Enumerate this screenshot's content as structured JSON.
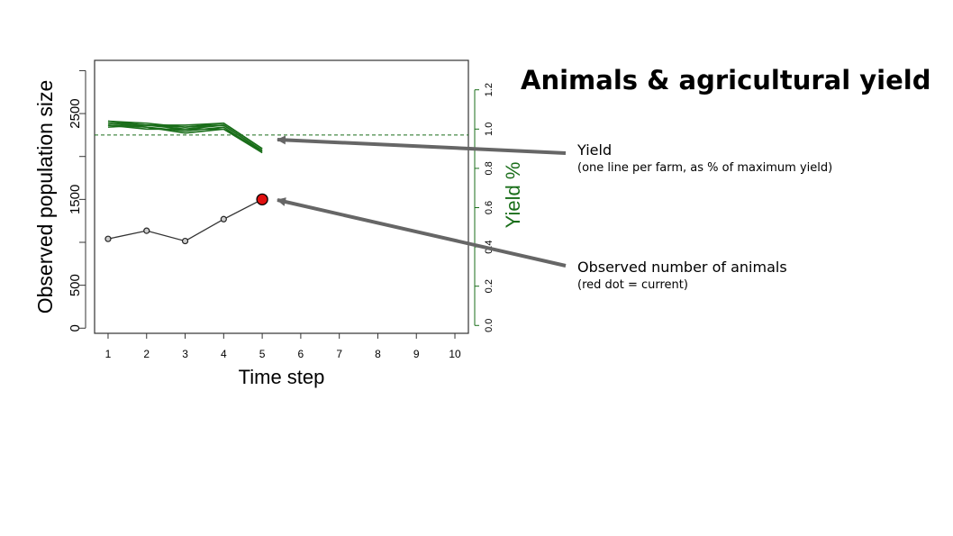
{
  "title": "Animals & agricultural yield",
  "annotations": {
    "yield_label": "Yield",
    "yield_note": "(one line per farm, as % of maximum yield)",
    "animals_label": "Observed number of animals",
    "animals_note": "(red dot = current)"
  },
  "colors": {
    "yield": "#1a6e1a",
    "population_line": "#333333",
    "current_point": "#e01010",
    "arrow": "#666666",
    "axis": "#333333"
  },
  "chart_data": {
    "type": "line",
    "title": "Animals & agricultural yield",
    "xlabel": "Time step",
    "ylabel": "Observed population size",
    "y2label": "Yield %",
    "x_ticks": [
      1,
      2,
      3,
      4,
      5,
      6,
      7,
      8,
      9,
      10
    ],
    "y_ticks": [
      0,
      500,
      1000,
      1500,
      2000,
      2500,
      3000
    ],
    "y_tick_labels": [
      "0",
      "500",
      "",
      "1500",
      "",
      "2500",
      ""
    ],
    "y2_ticks": [
      0.0,
      0.2,
      0.4,
      0.6,
      0.8,
      1.0,
      1.2
    ],
    "y2_tick_labels": [
      "0.0",
      "0.2",
      "0.4",
      "0.6",
      "0.8",
      "1.0",
      "1.2"
    ],
    "xlim": [
      0.65,
      10.35
    ],
    "ylim": [
      -60,
      3120
    ],
    "y2lim": [
      -0.04,
      1.35
    ],
    "reference_line_y2": 0.97,
    "population": {
      "x": [
        1,
        2,
        3,
        4,
        5
      ],
      "y": [
        1040,
        1135,
        1015,
        1270,
        1500
      ],
      "current_index": 4
    },
    "yield_series": [
      {
        "x": [
          1,
          2,
          3,
          4,
          5
        ],
        "y": [
          1.02,
          1.0,
          1.0,
          1.0,
          0.88
        ]
      },
      {
        "x": [
          1,
          2,
          3,
          4,
          5
        ],
        "y": [
          1.04,
          1.03,
          1.01,
          1.02,
          0.89
        ]
      },
      {
        "x": [
          1,
          2,
          3,
          4,
          5
        ],
        "y": [
          1.03,
          1.01,
          0.99,
          1.01,
          0.88
        ]
      },
      {
        "x": [
          1,
          2,
          3,
          4,
          5
        ],
        "y": [
          1.01,
          1.02,
          1.02,
          1.03,
          0.9
        ]
      },
      {
        "x": [
          1,
          2,
          3,
          4,
          5
        ],
        "y": [
          1.03,
          1.02,
          1.0,
          1.02,
          0.89
        ]
      },
      {
        "x": [
          1,
          2,
          3,
          4,
          5
        ],
        "y": [
          1.02,
          1.01,
          0.98,
          1.0,
          0.89
        ]
      },
      {
        "x": [
          1,
          2,
          3,
          4,
          5
        ],
        "y": [
          1.04,
          1.02,
          1.01,
          1.03,
          0.9
        ]
      }
    ]
  }
}
